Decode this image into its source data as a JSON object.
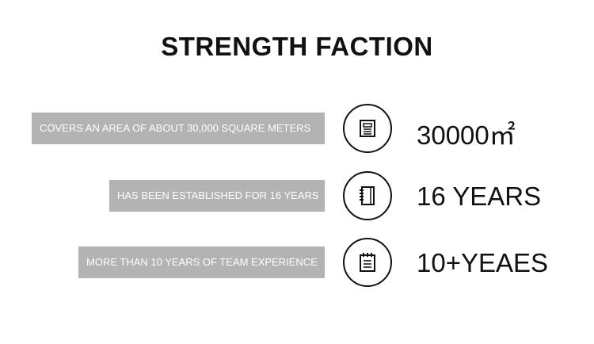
{
  "title": "STRENGTH FACTION",
  "rows": [
    {
      "label": "COVERS AN AREA OF ABOUT 30,000 SQUARE METERS",
      "value": "30000㎡",
      "icon": "document-icon"
    },
    {
      "label": "HAS BEEN ESTABLISHED FOR 16 YEARS",
      "value": "16 YEARS",
      "icon": "notebook-icon"
    },
    {
      "label": "MORE THAN 10 YEARS OF TEAM EXPERIENCE",
      "value": "10+YEAES",
      "icon": "notepad-icon"
    }
  ]
}
